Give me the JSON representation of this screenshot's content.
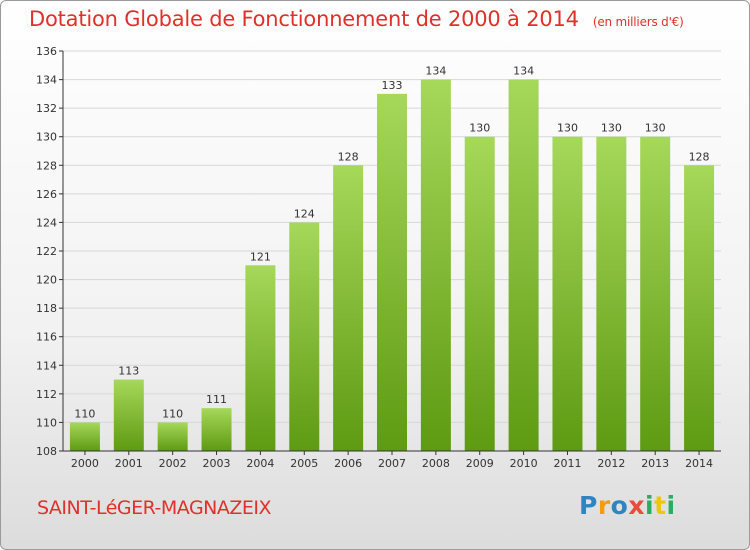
{
  "header": {
    "title": "Dotation Globale de Fonctionnement de 2000 à 2014",
    "subtitle": "(en milliers d'€)"
  },
  "commune": "SAINT-LéGER-MAGNAZEIX",
  "logo": {
    "text": "Proxiti",
    "letter_colors": [
      "#2e86c1",
      "#f39c12",
      "#2e86c1",
      "#e74c3c",
      "#27ae60",
      "#f1c40f",
      "#27ae60"
    ]
  },
  "colors": {
    "bar_top": "#a6d85a",
    "bar_bottom": "#5e9a12",
    "grid": "#d7d7d7",
    "axis": "#333333",
    "title": "#e0302a"
  },
  "chart_data": {
    "type": "bar",
    "title": "Dotation Globale de Fonctionnement de 2000 à 2014",
    "subtitle": "(en milliers d'€)",
    "categories": [
      "2000",
      "2001",
      "2002",
      "2003",
      "2004",
      "2005",
      "2006",
      "2007",
      "2008",
      "2009",
      "2010",
      "2011",
      "2012",
      "2013",
      "2014"
    ],
    "values": [
      110,
      113,
      110,
      111,
      121,
      124,
      128,
      133,
      134,
      130,
      134,
      130,
      130,
      130,
      128
    ],
    "ylim": [
      108,
      136
    ],
    "yticks": [
      108,
      110,
      112,
      114,
      116,
      118,
      120,
      122,
      124,
      126,
      128,
      130,
      132,
      134,
      136
    ],
    "grid": true,
    "data_labels": true
  }
}
